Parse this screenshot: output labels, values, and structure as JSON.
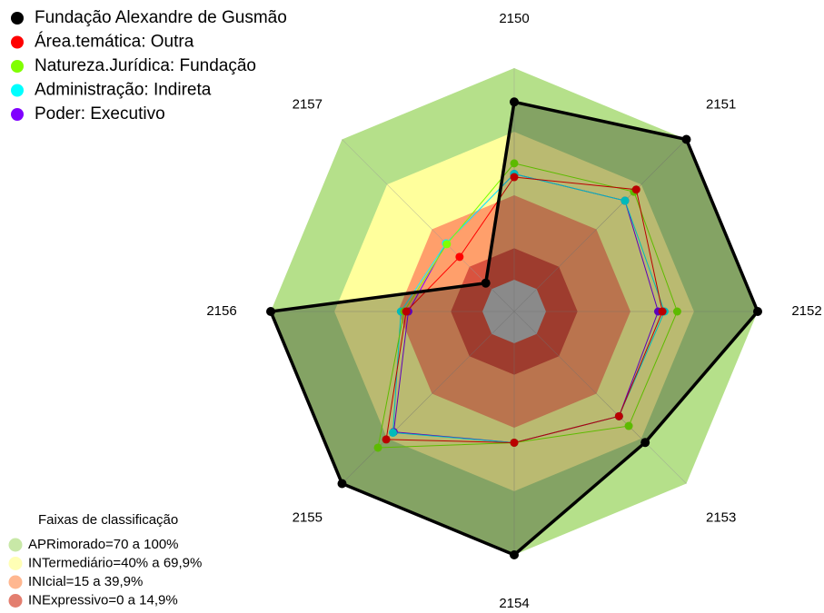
{
  "chart_data": {
    "type": "radar",
    "categories": [
      "2150",
      "2151",
      "2152",
      "2153",
      "2154",
      "2155",
      "2156",
      "2157"
    ],
    "ylim": [
      -15,
      100
    ],
    "series": [
      {
        "name": "Fundação Alexandre de Gusmão",
        "color": "#000000",
        "fill": true,
        "values": [
          84,
          100,
          100,
          72.5,
          100,
          100,
          100,
          4
        ]
      },
      {
        "name": "Área.temática: Outra",
        "color": "#ff0000",
        "values": [
          48.5,
          66.5,
          55,
          55,
          47,
          70.5,
          36,
          21.5
        ]
      },
      {
        "name": "Natureza.Jurídica: Fundação",
        "color": "#80ff00",
        "values": [
          55,
          65,
          62,
          61.5,
          47,
          76,
          37,
          30
        ]
      },
      {
        "name": "Administração: Indireta",
        "color": "#00ffff",
        "values": [
          50,
          59,
          56,
          55,
          47,
          66,
          38.5,
          30.5
        ]
      },
      {
        "name": "Poder: Executivo",
        "color": "#8000ff",
        "values": [
          50,
          59,
          53,
          55,
          47,
          65.5,
          35,
          30.5
        ]
      }
    ],
    "center_color": "#bebebe",
    "bands_title": "Faixas de classificação",
    "bands": [
      {
        "label": "APRimorado=70 a 100%",
        "color": "#b5e08a",
        "min": 70,
        "max": 100
      },
      {
        "label": "INTermediário=40% a 69,9%",
        "color": "#ffff9c",
        "min": 40,
        "max": 69.9
      },
      {
        "label": "INIcial=15 a 39,9%",
        "color": "#ff9f6b",
        "min": 15,
        "max": 39.9
      },
      {
        "label": "INExpressivo=0 a 14,9%",
        "color": "#d9533f",
        "min": 0,
        "max": 14.9
      }
    ]
  }
}
